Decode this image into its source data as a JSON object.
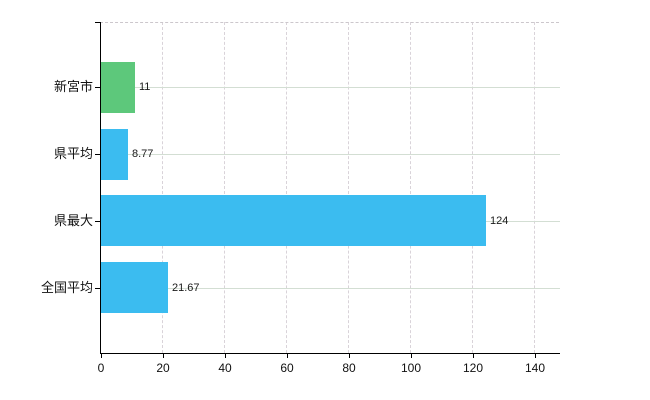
{
  "chart_data": {
    "type": "bar",
    "orientation": "horizontal",
    "title": "",
    "xlabel": "",
    "ylabel": "",
    "categories": [
      "新宮市",
      "県平均",
      "県最大",
      "全国平均"
    ],
    "values": [
      11,
      8.77,
      124,
      21.67
    ],
    "value_labels": [
      "11",
      "8.77",
      "124",
      "21.67"
    ],
    "series": [
      {
        "name": "value",
        "values": [
          11,
          8.77,
          124,
          21.67
        ]
      }
    ],
    "bar_colors": [
      "#5dc87b",
      "#3bbcf0",
      "#3bbcf0",
      "#3bbcf0"
    ],
    "xlim": [
      0,
      148
    ],
    "xticks": [
      0,
      20,
      40,
      60,
      80,
      100,
      120,
      140
    ],
    "xtick_labels": [
      "0",
      "20",
      "40",
      "60",
      "80",
      "100",
      "120",
      "140"
    ],
    "grid": true,
    "legend": false,
    "colors": {
      "axis": "#000000",
      "text": "#111111",
      "vertical_grid": "#d9d3d9",
      "horizontal_grid": "#d3ded3",
      "top_border": "#ccc7cc",
      "green_bar": "#5dc87b",
      "blue_bar": "#3bbcf0",
      "background": "#ffffff"
    }
  }
}
